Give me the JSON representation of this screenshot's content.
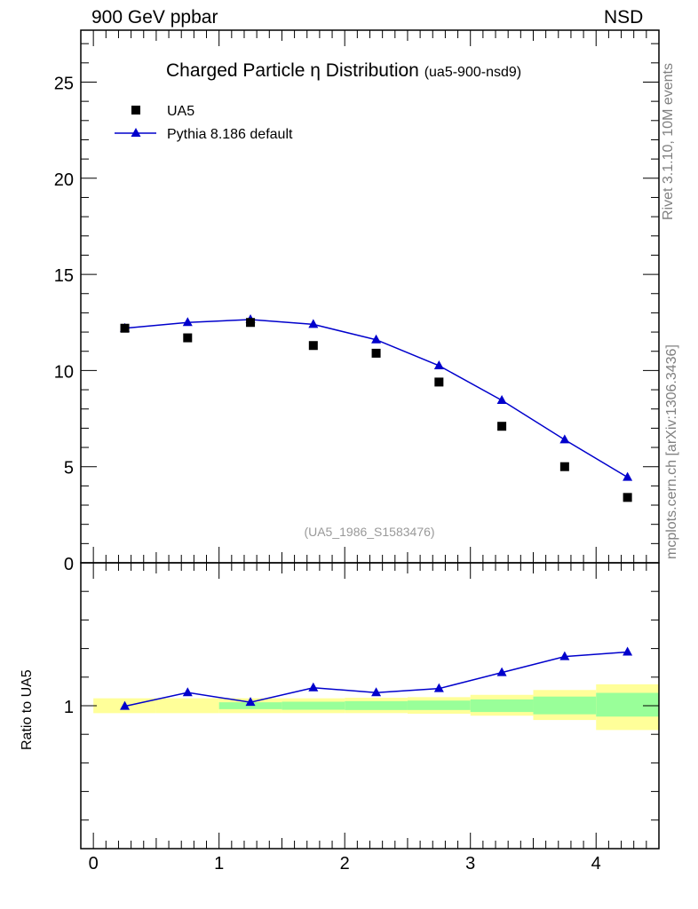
{
  "header": {
    "left": "900 GeV ppbar",
    "right": "NSD"
  },
  "side_text": {
    "upper": "Rivet 3.1.10,  10M events",
    "lower": "mcplots.cern.ch [arXiv:1306.3436]"
  },
  "chart_data": [
    {
      "type": "scatter",
      "title": "Charged Particle",
      "title_symbol": "η",
      "title_rest": "Distribution",
      "title_tag": "(ua5-900-nsd9)",
      "watermark": "(UA5_1986_S1583476)",
      "xlim": [
        -0.1,
        4.5
      ],
      "ylim": [
        0,
        27.7
      ],
      "yticks": [
        0,
        5,
        10,
        15,
        20,
        25
      ],
      "ytick_labels": [
        "0",
        "5",
        "10",
        "15",
        "20",
        "25"
      ],
      "legend_position": "top-left",
      "series": [
        {
          "name": "UA5",
          "marker": "square",
          "color": "#000000",
          "x": [
            0.25,
            0.75,
            1.25,
            1.75,
            2.25,
            2.75,
            3.25,
            3.75,
            4.25
          ],
          "y": [
            12.2,
            11.7,
            12.5,
            11.3,
            10.9,
            9.4,
            7.1,
            5.0,
            3.4
          ]
        },
        {
          "name": "Pythia 8.186 default",
          "marker": "triangle",
          "color": "#0000cc",
          "x": [
            0.25,
            0.75,
            1.25,
            1.75,
            2.25,
            2.75,
            3.25,
            3.75,
            4.25
          ],
          "y": [
            12.2,
            12.5,
            12.65,
            12.4,
            11.6,
            10.25,
            8.45,
            6.4,
            4.45
          ]
        }
      ]
    },
    {
      "type": "line",
      "ylabel": "Ratio to UA5",
      "xlim": [
        -0.1,
        4.5
      ],
      "ylim": [
        0.5,
        1.5
      ],
      "yticks": [
        1
      ],
      "ytick_labels": [
        "1"
      ],
      "xticks": [
        0,
        1,
        2,
        3,
        4
      ],
      "xtick_labels": [
        "0",
        "1",
        "2",
        "3",
        "4"
      ],
      "uncertainty_bands": {
        "x_edges": [
          0,
          0.5,
          1,
          1.5,
          2,
          2.5,
          3,
          3.5,
          4,
          4.5
        ],
        "total": {
          "color": "#ffff99",
          "low": [
            0.974,
            0.974,
            0.974,
            0.974,
            0.974,
            0.972,
            0.965,
            0.95,
            0.915
          ],
          "high": [
            1.026,
            1.026,
            1.026,
            1.026,
            1.028,
            1.03,
            1.038,
            1.055,
            1.075
          ]
        },
        "stat": {
          "color": "#99ff99",
          "low": [
            1.0,
            1.0,
            0.988,
            0.986,
            0.985,
            0.985,
            0.978,
            0.97,
            0.962
          ],
          "high": [
            1.0,
            1.0,
            1.012,
            1.014,
            1.016,
            1.018,
            1.022,
            1.032,
            1.045
          ]
        }
      },
      "series": [
        {
          "name": "Pythia 8.186 default",
          "color": "#0000cc",
          "x": [
            0.25,
            0.75,
            1.25,
            1.75,
            2.25,
            2.75,
            3.25,
            3.75,
            4.25
          ],
          "y": [
            0.998,
            1.046,
            1.012,
            1.063,
            1.046,
            1.06,
            1.116,
            1.172,
            1.188
          ]
        }
      ]
    }
  ]
}
